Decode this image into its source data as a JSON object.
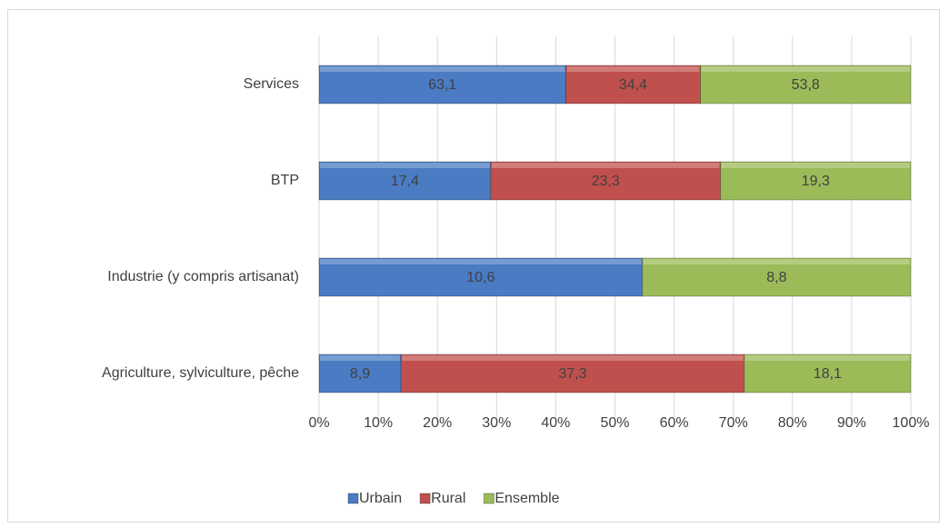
{
  "chart_data": {
    "type": "stacked_bar_100",
    "orientation": "horizontal",
    "categories": [
      "Agriculture, sylviculture, pêche",
      "Industrie (y compris artisanat)",
      "BTP",
      "Services"
    ],
    "series": [
      {
        "name": "Urbain",
        "color": "#4a7bc3",
        "values": [
          8.9,
          10.6,
          17.4,
          63.1
        ],
        "value_labels": [
          "8,9",
          "10,6",
          "17,4",
          "63,1"
        ]
      },
      {
        "name": "Rural",
        "color": "#c0504d",
        "values": [
          37.3,
          null,
          23.3,
          34.4
        ],
        "value_labels": [
          "37,3",
          null,
          "23,3",
          "34,4"
        ]
      },
      {
        "name": "Ensemble",
        "color": "#9bbb59",
        "values": [
          18.1,
          8.8,
          19.3,
          53.8
        ],
        "value_labels": [
          "18,1",
          "8,8",
          "19,3",
          "53,8"
        ]
      }
    ],
    "xlim": [
      0,
      100
    ],
    "xticks": [
      {
        "value": 0,
        "label": "0%"
      },
      {
        "value": 10,
        "label": "10%"
      },
      {
        "value": 20,
        "label": "20%"
      },
      {
        "value": 30,
        "label": "30%"
      },
      {
        "value": 40,
        "label": "40%"
      },
      {
        "value": 50,
        "label": "50%"
      },
      {
        "value": 60,
        "label": "60%"
      },
      {
        "value": 70,
        "label": "70%"
      },
      {
        "value": 80,
        "label": "80%"
      },
      {
        "value": 90,
        "label": "90%"
      },
      {
        "value": 100,
        "label": "100%"
      }
    ],
    "grid": true,
    "legend": "bottom"
  }
}
